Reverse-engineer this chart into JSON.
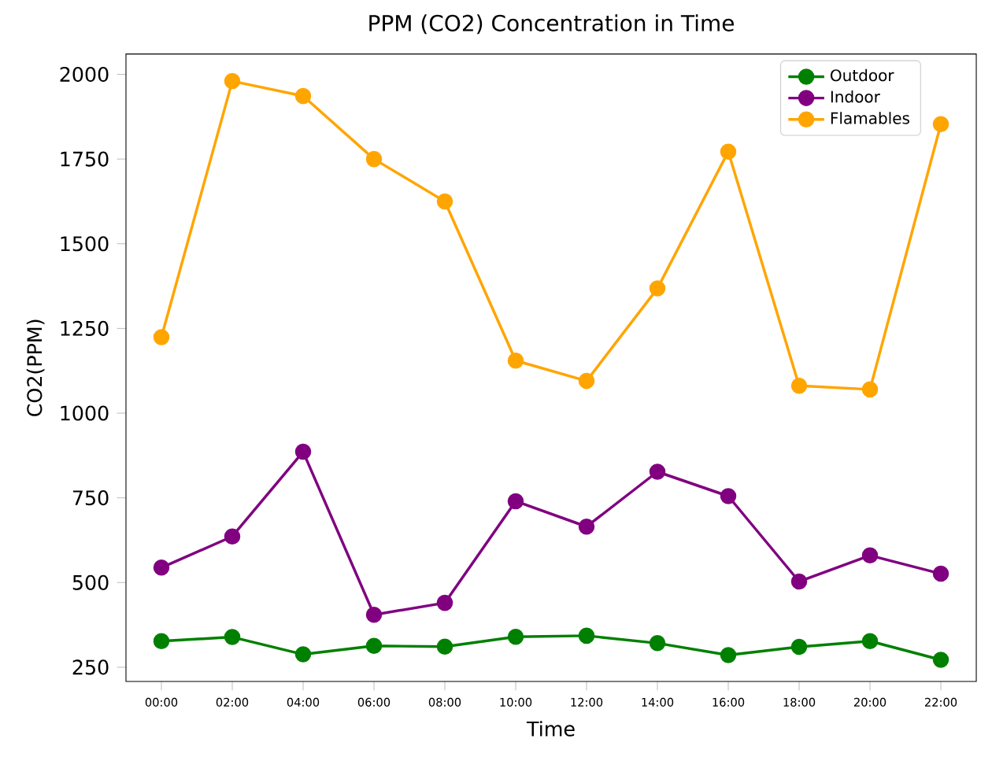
{
  "chart_data": {
    "type": "line",
    "title": "PPM (CO2) Concentration in Time",
    "xlabel": "Time",
    "ylabel": "CO2(PPM)",
    "categories": [
      "00:00",
      "02:00",
      "04:00",
      "06:00",
      "08:00",
      "10:00",
      "12:00",
      "14:00",
      "16:00",
      "18:00",
      "20:00",
      "22:00"
    ],
    "series": [
      {
        "name": "Outdoor",
        "color": "#008000",
        "values": [
          327,
          339,
          288,
          313,
          311,
          340,
          343,
          321,
          286,
          310,
          327,
          272
        ]
      },
      {
        "name": "Indoor",
        "color": "#800080",
        "values": [
          544,
          636,
          886,
          405,
          440,
          740,
          665,
          827,
          755,
          503,
          580,
          526
        ]
      },
      {
        "name": "Flamables",
        "color": "#ffa500",
        "values": [
          1224,
          1980,
          1936,
          1750,
          1625,
          1155,
          1095,
          1368,
          1772,
          1081,
          1070,
          1853
        ]
      }
    ],
    "ylim": [
      208,
      2060
    ],
    "yticks": [
      250,
      500,
      750,
      1000,
      1250,
      1500,
      1750,
      2000
    ],
    "legend": "top right",
    "marker": "circle",
    "line_style": "solid",
    "grid": false
  }
}
